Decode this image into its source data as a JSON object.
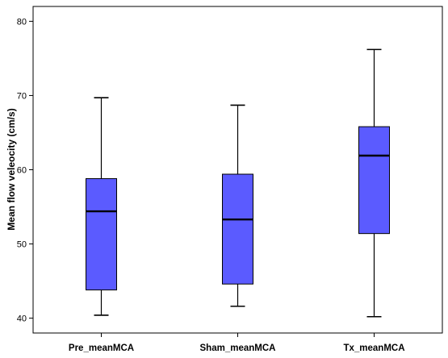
{
  "chart_data": {
    "type": "boxplot",
    "title": "",
    "xlabel": "",
    "ylabel": "Mean flow veleocity (cm/s)",
    "ylim": [
      38,
      82
    ],
    "y_ticks": [
      40,
      50,
      60,
      70,
      80
    ],
    "grid": false,
    "legend": "none",
    "box_color": "#5b5bff",
    "categories": [
      "Pre_meanMCA",
      "Sham_meanMCA",
      "Tx_meanMCA"
    ],
    "boxes": [
      {
        "category": "Pre_meanMCA",
        "whisker_low": 40.4,
        "q1": 43.8,
        "median": 54.4,
        "q3": 58.8,
        "whisker_high": 69.7
      },
      {
        "category": "Sham_meanMCA",
        "whisker_low": 41.6,
        "q1": 44.6,
        "median": 53.3,
        "q3": 59.4,
        "whisker_high": 68.7
      },
      {
        "category": "Tx_meanMCA",
        "whisker_low": 40.2,
        "q1": 51.4,
        "median": 61.9,
        "q3": 65.8,
        "whisker_high": 76.2
      }
    ]
  }
}
